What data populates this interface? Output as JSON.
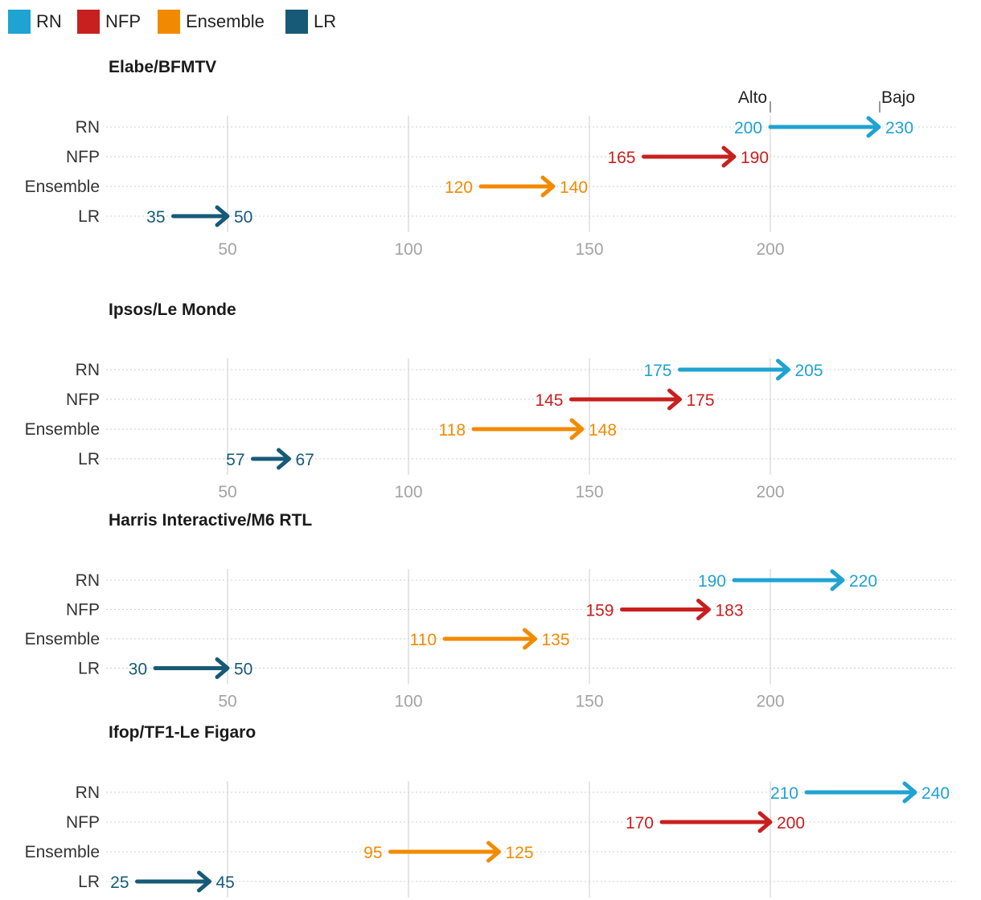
{
  "chart_data": {
    "type": "arrow-range",
    "legend": [
      {
        "name": "RN",
        "color": "#1fa3d1"
      },
      {
        "name": "NFP",
        "color": "#c8201f"
      },
      {
        "name": "Ensemble",
        "color": "#f28a00"
      },
      {
        "name": "LR",
        "color": "#175a78"
      }
    ],
    "categories": [
      "RN",
      "NFP",
      "Ensemble",
      "LR"
    ],
    "x_ticks": [
      50,
      100,
      150,
      200
    ],
    "xlim": [
      20,
      250
    ],
    "annotations": {
      "low": "Alto",
      "high": "Bajo"
    },
    "panels": [
      {
        "title": "Elabe/BFMTV",
        "ranges": [
          [
            200,
            230
          ],
          [
            165,
            190
          ],
          [
            120,
            140
          ],
          [
            35,
            50
          ]
        ]
      },
      {
        "title": "Ipsos/Le Monde",
        "ranges": [
          [
            175,
            205
          ],
          [
            145,
            175
          ],
          [
            118,
            148
          ],
          [
            57,
            67
          ]
        ]
      },
      {
        "title": "Harris Interactive/M6 RTL",
        "ranges": [
          [
            190,
            220
          ],
          [
            159,
            183
          ],
          [
            110,
            135
          ],
          [
            30,
            50
          ]
        ]
      },
      {
        "title": "Ifop/TF1-Le Figaro",
        "ranges": [
          [
            210,
            240
          ],
          [
            170,
            200
          ],
          [
            95,
            125
          ],
          [
            25,
            45
          ]
        ]
      }
    ]
  }
}
